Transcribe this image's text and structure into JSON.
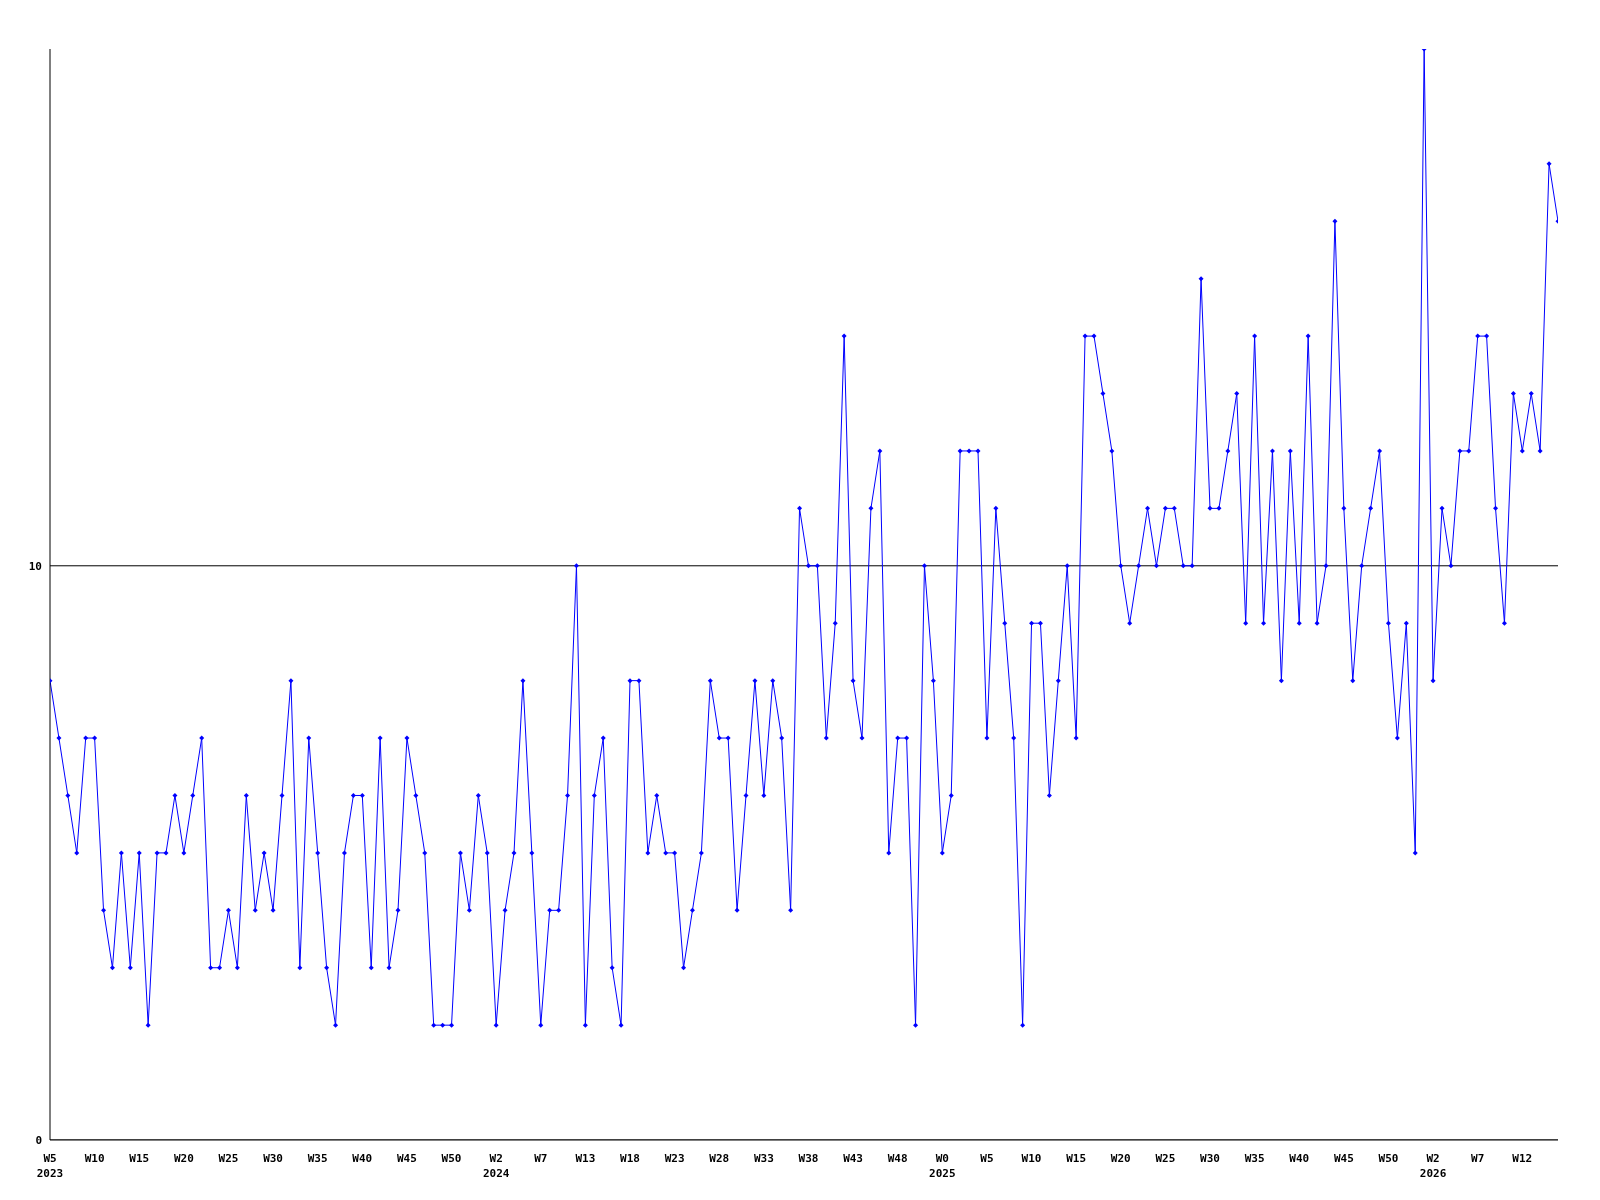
{
  "chart_data": {
    "type": "line",
    "categories": [
      "W5\n2023",
      null,
      null,
      null,
      null,
      "W10",
      null,
      null,
      null,
      null,
      "W15",
      null,
      null,
      null,
      null,
      "W20",
      null,
      null,
      null,
      null,
      "W25",
      null,
      null,
      null,
      null,
      "W30",
      null,
      null,
      null,
      null,
      "W35",
      null,
      null,
      null,
      null,
      "W40",
      null,
      null,
      null,
      null,
      "W45",
      null,
      null,
      null,
      null,
      "W50",
      null,
      null,
      null,
      null,
      "W2\n2024",
      null,
      null,
      null,
      null,
      "W7",
      null,
      null,
      null,
      null,
      "W13",
      null,
      null,
      null,
      null,
      "W18",
      null,
      null,
      null,
      null,
      "W23",
      null,
      null,
      null,
      null,
      "W28",
      null,
      null,
      null,
      null,
      "W33",
      null,
      null,
      null,
      null,
      "W38",
      null,
      null,
      null,
      null,
      "W43",
      null,
      null,
      null,
      null,
      "W48",
      null,
      null,
      null,
      null,
      "W0\n2025",
      null,
      null,
      null,
      null,
      "W5",
      null,
      null,
      null,
      null,
      "W10",
      null,
      null,
      null,
      null,
      "W15",
      null,
      null,
      null,
      null,
      "W20",
      null,
      null,
      null,
      null,
      "W25",
      null,
      null,
      null,
      null,
      "W30",
      null,
      null,
      null,
      null,
      "W35",
      null,
      null,
      null,
      null,
      "W40",
      null,
      null,
      null,
      null,
      "W45",
      null,
      null,
      null,
      null,
      "W50",
      null,
      null,
      null,
      null,
      "W2\n2026",
      null,
      null,
      null,
      null,
      "W7",
      null,
      null,
      null,
      null,
      "W12",
      null,
      null,
      null,
      null
    ],
    "series": [
      {
        "color": "#0000ff",
        "values": [
          8,
          7,
          6,
          5,
          7,
          7,
          4,
          3,
          5,
          3,
          5,
          2,
          5,
          5,
          6,
          5,
          6,
          7,
          3,
          3,
          4,
          3,
          6,
          4,
          5,
          4,
          6,
          8,
          3,
          7,
          5,
          3,
          2,
          5,
          6,
          6,
          3,
          7,
          3,
          4,
          7,
          6,
          5,
          2,
          2,
          2,
          5,
          4,
          6,
          5,
          2,
          4,
          5,
          8,
          5,
          2,
          4,
          4,
          6,
          10,
          2,
          6,
          7,
          3,
          2,
          8,
          8,
          5,
          6,
          5,
          5,
          3,
          4,
          5,
          8,
          7,
          7,
          4,
          6,
          8,
          6,
          8,
          7,
          4,
          11,
          10,
          10,
          7,
          9,
          14,
          8,
          7,
          11,
          12,
          5,
          7,
          7,
          2,
          10,
          8,
          5,
          6,
          12,
          12,
          12,
          7,
          11,
          9,
          7,
          2,
          9,
          9,
          6,
          8,
          10,
          7,
          14,
          14,
          13,
          12,
          10,
          9,
          10,
          11,
          10,
          11,
          11,
          10,
          10,
          15,
          11,
          11,
          12,
          13,
          9,
          14,
          9,
          12,
          8,
          12,
          9,
          14,
          9,
          10,
          16,
          11,
          8,
          10,
          11,
          12,
          9,
          7,
          9,
          5,
          19,
          8,
          11,
          10,
          12,
          12,
          14,
          14,
          11,
          9,
          13,
          12,
          13,
          12,
          17,
          16
        ]
      }
    ],
    "ylim": [
      0,
      19
    ],
    "yticks": [
      0,
      10
    ],
    "grid": "y",
    "marker": "diamond",
    "line_style": "solid"
  }
}
